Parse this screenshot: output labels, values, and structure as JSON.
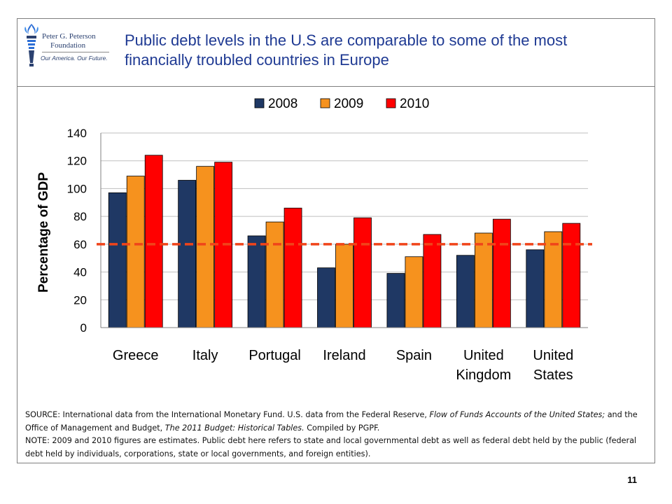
{
  "header": {
    "title": "Public debt levels in the U.S are comparable to some of the most financially troubled countries in Europe",
    "logo": {
      "line1": "Peter G. Peterson",
      "line2": "Foundation",
      "tagline": "Our America. Our Future.",
      "icon": "torch-icon"
    }
  },
  "chart_data": {
    "type": "bar",
    "categories": [
      "Greece",
      "Italy",
      "Portugal",
      "Ireland",
      "Spain",
      "United Kingdom",
      "United States"
    ],
    "category_lines": [
      [
        "Greece"
      ],
      [
        "Italy"
      ],
      [
        "Portugal"
      ],
      [
        "Ireland"
      ],
      [
        "Spain"
      ],
      [
        "United",
        "Kingdom"
      ],
      [
        "United",
        "States"
      ]
    ],
    "series": [
      {
        "name": "2008",
        "color": "#1f3864",
        "values": [
          97,
          106,
          66,
          43,
          39,
          52,
          56
        ]
      },
      {
        "name": "2009",
        "color": "#f6921e",
        "values": [
          109,
          116,
          76,
          60,
          51,
          68,
          69
        ]
      },
      {
        "name": "2010",
        "color": "#ff0000",
        "values": [
          124,
          119,
          86,
          79,
          67,
          78,
          75
        ]
      }
    ],
    "xlabel": "",
    "ylabel": "Percentage of GDP",
    "ylim": [
      0,
      140
    ],
    "yticks": [
      0,
      20,
      40,
      60,
      80,
      100,
      120,
      140
    ],
    "grid": true,
    "legend": "top-center",
    "reference_line": {
      "value": 60,
      "color": "#f0441a",
      "style": "dashed"
    }
  },
  "notes": {
    "source_1": "SOURCE: International data from the International Monetary Fund. U.S. data from the Federal Reserve, ",
    "source_italic_1": "Flow of Funds Accounts of the United States;",
    "source_2": " and the Office of Management and Budget, ",
    "source_italic_2": "The 2011 Budget: Historical Tables.",
    "source_3": " Compiled by PGPF.",
    "note": "NOTE: 2009 and 2010 figures are estimates. Public debt here refers to state and local governmental debt as well as federal debt held by the public (federal debt held by individuals, corporations, state or local governments, and foreign entities)."
  },
  "page_number": "11"
}
